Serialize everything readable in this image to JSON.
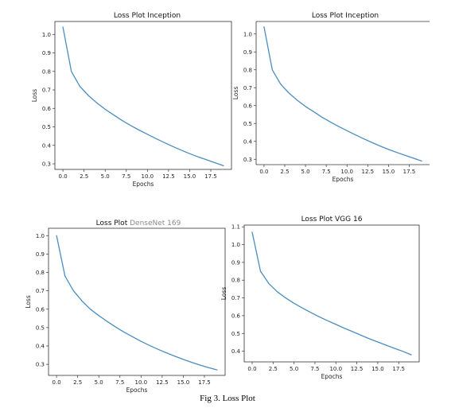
{
  "figure": {
    "caption": "Fig 3. Loss Plot"
  },
  "chart_data": [
    {
      "type": "line",
      "title": "Loss Plot Inception",
      "xlabel": "Epochs",
      "ylabel": "Loss",
      "xlim": [
        -0.95,
        19.95
      ],
      "ylim": [
        0.27,
        1.07
      ],
      "xticks": [
        0.0,
        2.5,
        5.0,
        7.5,
        10.0,
        12.5,
        15.0,
        17.5
      ],
      "xtick_labels": [
        "0.0",
        "2.5",
        "5.0",
        "7.5",
        "10.0",
        "12.5",
        "15.0",
        "17.5"
      ],
      "yticks": [
        0.3,
        0.4,
        0.5,
        0.6,
        0.7,
        0.8,
        0.9,
        1.0
      ],
      "ytick_labels": [
        "0.3",
        "0.4",
        "0.5",
        "0.6",
        "0.7",
        "0.8",
        "0.9",
        "1.0"
      ],
      "grid": false,
      "series": [
        {
          "color": "#4a8dbf",
          "x": [
            0,
            1,
            2,
            3,
            4,
            5,
            6,
            7,
            8,
            9,
            10,
            11,
            12,
            13,
            14,
            15,
            16,
            17,
            18,
            19
          ],
          "y": [
            1.04,
            0.8,
            0.72,
            0.67,
            0.63,
            0.595,
            0.565,
            0.535,
            0.508,
            0.483,
            0.46,
            0.437,
            0.415,
            0.394,
            0.374,
            0.355,
            0.338,
            0.322,
            0.306,
            0.29
          ]
        }
      ]
    },
    {
      "type": "line",
      "title": "Loss Plot Inception",
      "xlabel": "Epochs",
      "ylabel": "Loss",
      "xlim": [
        -0.95,
        19.95
      ],
      "ylim": [
        0.27,
        1.07
      ],
      "xticks": [
        0.0,
        2.5,
        5.0,
        7.5,
        10.0,
        12.5,
        15.0,
        17.5
      ],
      "xtick_labels": [
        "0.0",
        "2.5",
        "5.0",
        "7.5",
        "10.0",
        "12.5",
        "15.0",
        "17.5"
      ],
      "yticks": [
        0.3,
        0.4,
        0.5,
        0.6,
        0.7,
        0.8,
        0.9,
        1.0
      ],
      "ytick_labels": [
        "0.3",
        "0.4",
        "0.5",
        "0.6",
        "0.7",
        "0.8",
        "0.9",
        "1.0"
      ],
      "grid": false,
      "series": [
        {
          "color": "#4a8dbf",
          "x": [
            0,
            1,
            2,
            3,
            4,
            5,
            6,
            7,
            8,
            9,
            10,
            11,
            12,
            13,
            14,
            15,
            16,
            17,
            18,
            19
          ],
          "y": [
            1.04,
            0.8,
            0.72,
            0.67,
            0.63,
            0.595,
            0.565,
            0.535,
            0.508,
            0.483,
            0.46,
            0.437,
            0.415,
            0.394,
            0.374,
            0.355,
            0.338,
            0.322,
            0.306,
            0.29
          ]
        }
      ]
    },
    {
      "type": "line",
      "title": "Loss Plot",
      "title_suffix": "DenseNet 169",
      "xlabel": "Epochs",
      "ylabel": "Loss",
      "xlim": [
        -0.95,
        19.95
      ],
      "ylim": [
        0.24,
        1.04
      ],
      "xticks": [
        0.0,
        2.5,
        5.0,
        7.5,
        10.0,
        12.5,
        15.0,
        17.5
      ],
      "xtick_labels": [
        "0.0",
        "2.5",
        "5.0",
        "7.5",
        "10.0",
        "12.5",
        "15.0",
        "17.5"
      ],
      "yticks": [
        0.3,
        0.4,
        0.5,
        0.6,
        0.7,
        0.8,
        0.9,
        1.0
      ],
      "ytick_labels": [
        "0.3",
        "0.4",
        "0.5",
        "0.6",
        "0.7",
        "0.8",
        "0.9",
        "1.0"
      ],
      "grid": false,
      "series": [
        {
          "color": "#4a8dbf",
          "x": [
            0,
            1,
            2,
            3,
            4,
            5,
            6,
            7,
            8,
            9,
            10,
            11,
            12,
            13,
            14,
            15,
            16,
            17,
            18,
            19
          ],
          "y": [
            1.0,
            0.78,
            0.7,
            0.645,
            0.6,
            0.565,
            0.533,
            0.503,
            0.475,
            0.45,
            0.425,
            0.403,
            0.382,
            0.363,
            0.344,
            0.327,
            0.311,
            0.296,
            0.282,
            0.27
          ]
        }
      ]
    },
    {
      "type": "line",
      "title": "Loss Plot VGG 16",
      "xlabel": "Epochs",
      "ylabel": "Loss",
      "xlim": [
        -0.95,
        19.95
      ],
      "ylim": [
        0.34,
        1.11
      ],
      "xticks": [
        0.0,
        2.5,
        5.0,
        7.5,
        10.0,
        12.5,
        15.0,
        17.5
      ],
      "xtick_labels": [
        "0.0",
        "2.5",
        "5.0",
        "7.5",
        "10.0",
        "12.5",
        "15.0",
        "17.5"
      ],
      "yticks": [
        0.4,
        0.5,
        0.6,
        0.7,
        0.8,
        0.9,
        1.0,
        1.1
      ],
      "ytick_labels": [
        "0.4",
        "0.5",
        "0.6",
        "0.7",
        "0.8",
        "0.9",
        "1.0",
        "1.1"
      ],
      "grid": false,
      "series": [
        {
          "color": "#4a8dbf",
          "x": [
            0,
            1,
            2,
            3,
            4,
            5,
            6,
            7,
            8,
            9,
            10,
            11,
            12,
            13,
            14,
            15,
            16,
            17,
            18,
            19
          ],
          "y": [
            1.07,
            0.85,
            0.78,
            0.735,
            0.7,
            0.67,
            0.643,
            0.618,
            0.594,
            0.572,
            0.551,
            0.53,
            0.51,
            0.49,
            0.47,
            0.452,
            0.434,
            0.416,
            0.399,
            0.38
          ]
        }
      ]
    }
  ]
}
